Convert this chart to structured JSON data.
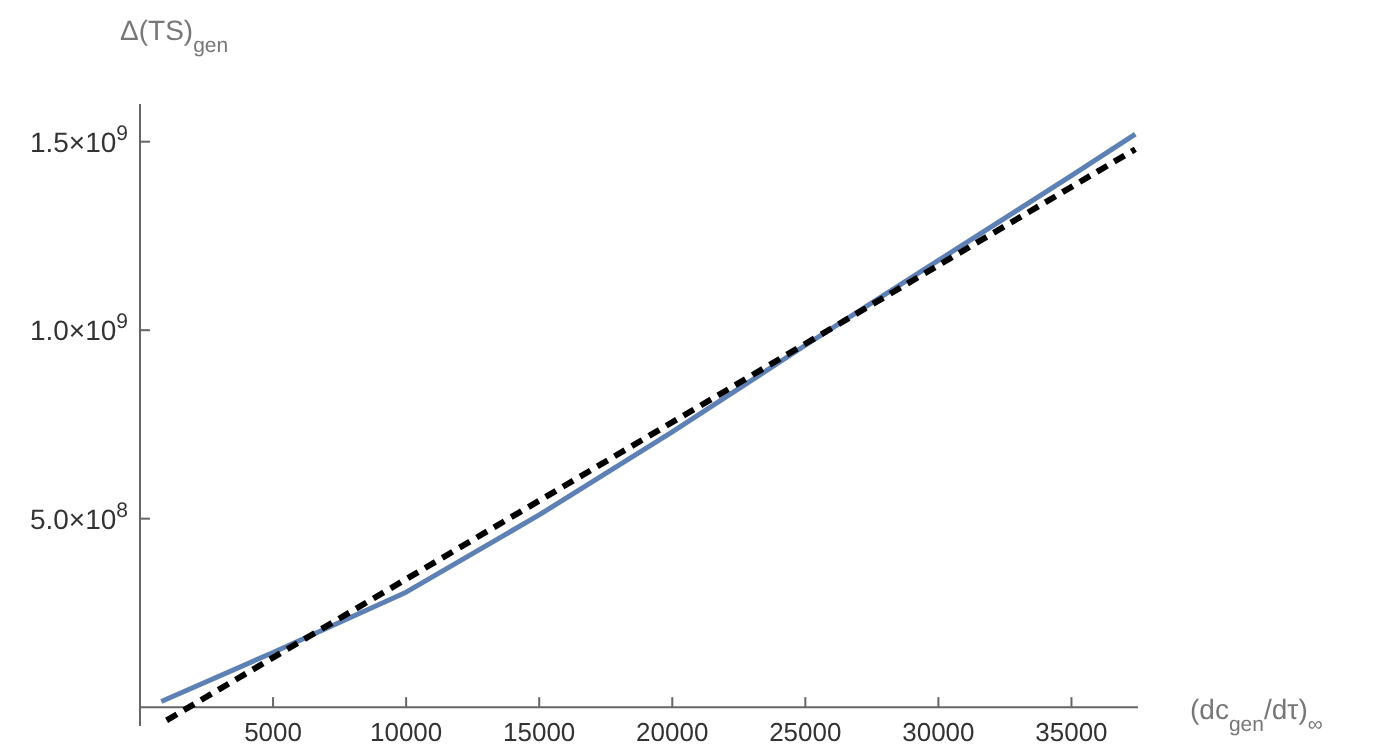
{
  "chart_data": {
    "type": "line",
    "xlabel": "(dc$_{gen}$/dτ)$_{∞}$",
    "ylabel": "Δ(TS)$_{gen}$",
    "xlim": [
      0,
      37500
    ],
    "ylim": [
      -50000000,
      1600000000
    ],
    "xticks": [
      5000,
      10000,
      15000,
      20000,
      25000,
      30000,
      35000
    ],
    "yticks": [
      {
        "value": 500000000,
        "label": "5.0×10$^{8}$"
      },
      {
        "value": 1000000000,
        "label": "1.0×10$^{9}$"
      },
      {
        "value": 1500000000,
        "label": "1.5×10$^{9}$"
      }
    ],
    "grid": false,
    "series": [
      {
        "color": "#5e81b5",
        "line_style": "solid",
        "x": [
          800,
          5000,
          10000,
          15000,
          20000,
          25000,
          30000,
          35000,
          37400
        ],
        "values": [
          15000000,
          145000000,
          305000000,
          510000000,
          730000000,
          960000000,
          1185000000,
          1410000000,
          1520000000
        ]
      },
      {
        "color": "#000000",
        "line_style": "dashed",
        "x": [
          1000,
          37400
        ],
        "values": [
          -35000000,
          1480000000
        ]
      }
    ]
  }
}
